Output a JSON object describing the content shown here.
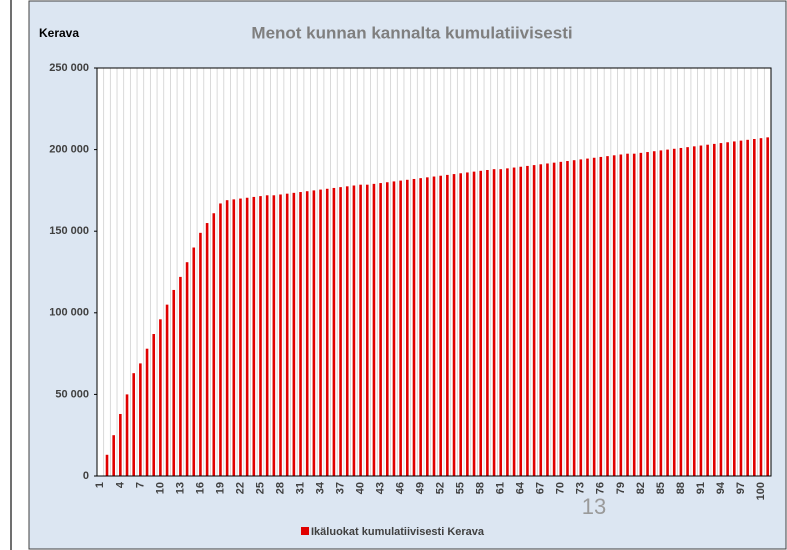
{
  "chart_data": {
    "type": "bar",
    "corner_label": "Kerava",
    "title": "Menot kunnan kannalta kumulatiivisesti",
    "page_number": "13",
    "categories": [
      "1",
      null,
      null,
      "4",
      null,
      null,
      "7",
      null,
      null,
      "10",
      null,
      null,
      "13",
      null,
      null,
      "16",
      null,
      null,
      "19",
      null,
      null,
      "22",
      null,
      null,
      "25",
      null,
      null,
      "28",
      null,
      null,
      "31",
      null,
      null,
      "34",
      null,
      null,
      "37",
      null,
      null,
      "40",
      null,
      null,
      "43",
      null,
      null,
      "46",
      null,
      null,
      "49",
      null,
      null,
      "52",
      null,
      null,
      "55",
      null,
      null,
      "58",
      null,
      null,
      "61",
      null,
      null,
      "64",
      null,
      null,
      "67",
      null,
      null,
      "70",
      null,
      null,
      "73",
      null,
      null,
      "76",
      null,
      null,
      "79",
      null,
      null,
      "82",
      null,
      null,
      "85",
      null,
      null,
      "88",
      null,
      null,
      "91",
      null,
      null,
      "94",
      null,
      null,
      "97",
      null,
      null,
      "100",
      null
    ],
    "series": [
      {
        "name": "Ikäluokat kumulatiivisesti Kerava",
        "color": "#e00000",
        "values": [
          0,
          13000,
          25000,
          38000,
          50000,
          63000,
          69000,
          78000,
          87000,
          96000,
          105000,
          114000,
          122000,
          131000,
          140000,
          149000,
          155000,
          161000,
          167000,
          169000,
          169500,
          170000,
          170500,
          171000,
          171500,
          172000,
          172000,
          172500,
          173000,
          173500,
          174000,
          174500,
          175000,
          175500,
          176000,
          176500,
          177000,
          177500,
          178000,
          178500,
          178500,
          179000,
          179500,
          180000,
          180500,
          181000,
          181500,
          182000,
          182500,
          183000,
          183500,
          184000,
          184500,
          185000,
          185500,
          186000,
          186500,
          187000,
          187500,
          188000,
          188000,
          188500,
          189000,
          189500,
          190000,
          190500,
          191000,
          191500,
          192000,
          192500,
          193000,
          193500,
          194000,
          194500,
          195000,
          195500,
          196000,
          196500,
          197000,
          197500,
          197500,
          198000,
          198500,
          199000,
          199500,
          200000,
          200500,
          201000,
          201500,
          202000,
          202500,
          203000,
          203500,
          204000,
          204500,
          205000,
          205500,
          206000,
          206500,
          207000,
          207500
        ]
      }
    ],
    "ylim": [
      0,
      250000
    ],
    "yticks": [
      0,
      {
        "value": 50000,
        "label": "50 000"
      },
      {
        "value": 100000,
        "label": "100 000"
      },
      {
        "value": 150000,
        "label": "150 000"
      },
      {
        "value": 200000,
        "label": "200 000"
      },
      {
        "value": 250000,
        "label": "250 000"
      }
    ],
    "xgrid": true,
    "legend": "bottom"
  }
}
